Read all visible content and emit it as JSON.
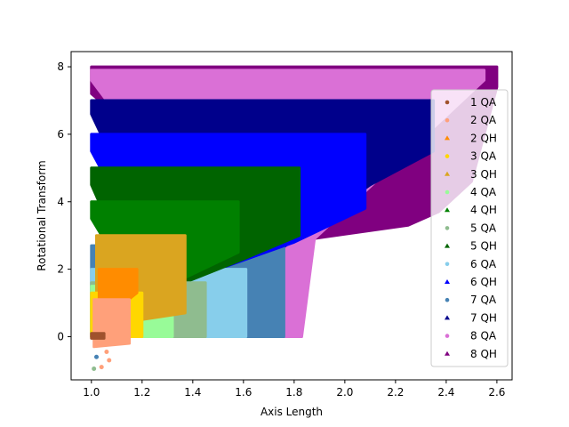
{
  "chart_data": {
    "type": "scatter",
    "xlabel": "Axis Length",
    "ylabel": "Rotational Transform",
    "xlim": [
      0.92,
      2.66
    ],
    "ylim": [
      -1.28,
      8.45
    ],
    "xticks": [
      "1.0",
      "1.2",
      "1.4",
      "1.6",
      "1.8",
      "2.0",
      "2.2",
      "2.4",
      "2.6"
    ],
    "xtick_values": [
      1.0,
      1.2,
      1.4,
      1.6,
      1.8,
      2.0,
      2.2,
      2.4,
      2.6
    ],
    "yticks": [
      "0",
      "2",
      "4",
      "6",
      "8"
    ],
    "ytick_values": [
      0,
      2,
      4,
      6,
      8
    ],
    "grid": false,
    "legend_position": "right",
    "series": [
      {
        "name": "8 QH",
        "color": "#800080",
        "marker": "triangle",
        "region": {
          "x": [
            1.0,
            2.6
          ],
          "y_top": 8.0,
          "y_bottom": [
            [
              1.0,
              7.2
            ],
            [
              1.5,
              4.0
            ],
            [
              1.75,
              2.1
            ],
            [
              1.82,
              1.4
            ],
            [
              1.87,
              2.9
            ],
            [
              2.25,
              3.3
            ],
            [
              2.37,
              3.7
            ],
            [
              2.5,
              4.6
            ],
            [
              2.6,
              7.4
            ]
          ]
        }
      },
      {
        "name": "8 QA",
        "color": "#da70d6",
        "marker": "circle",
        "region": {
          "x": [
            1.0,
            2.55
          ],
          "y_top": 7.9,
          "y_bottom": [
            [
              1.0,
              7.6
            ],
            [
              1.76,
              0.0
            ],
            [
              1.83,
              0.0
            ],
            [
              1.88,
              2.9
            ],
            [
              2.55,
              7.6
            ]
          ]
        }
      },
      {
        "name": "7 QH",
        "color": "#00008b",
        "marker": "triangle",
        "region": {
          "x": [
            1.0,
            2.35
          ],
          "y_top": 7.0,
          "y_bottom": [
            [
              1.0,
              6.6
            ],
            [
              1.32,
              1.5
            ],
            [
              1.6,
              1.8
            ],
            [
              1.7,
              2.3
            ],
            [
              1.8,
              2.9
            ],
            [
              2.1,
              4.5
            ],
            [
              2.35,
              5.5
            ]
          ]
        }
      },
      {
        "name": "7 QA",
        "color": "#4682b4",
        "marker": "circle",
        "region": {
          "x": [
            1.0,
            1.76
          ],
          "y_top": 2.7,
          "y_bottom": [
            [
              1.0,
              0.0
            ],
            [
              1.76,
              0.0
            ]
          ]
        }
      },
      {
        "name": "6 QH",
        "color": "#0000ff",
        "marker": "triangle",
        "region": {
          "x": [
            1.0,
            2.08
          ],
          "y_top": 6.0,
          "y_bottom": [
            [
              1.0,
              5.5
            ],
            [
              1.3,
              1.3
            ],
            [
              1.5,
              2.0
            ],
            [
              1.65,
              2.4
            ],
            [
              1.8,
              2.8
            ],
            [
              2.08,
              3.8
            ]
          ]
        }
      },
      {
        "name": "6 QA",
        "color": "#87ceeb",
        "marker": "circle",
        "region": {
          "x": [
            1.0,
            1.61
          ],
          "y_top": 2.0,
          "y_bottom": [
            [
              1.0,
              0.0
            ],
            [
              1.61,
              0.0
            ]
          ]
        }
      },
      {
        "name": "5 QH",
        "color": "#006400",
        "marker": "triangle",
        "region": {
          "x": [
            1.0,
            1.82
          ],
          "y_top": 5.0,
          "y_bottom": [
            [
              1.0,
              4.5
            ],
            [
              1.2,
              1.1
            ],
            [
              1.4,
              1.7
            ],
            [
              1.6,
              2.3
            ],
            [
              1.82,
              3.0
            ]
          ]
        }
      },
      {
        "name": "5 QA",
        "color": "#8fbc8f",
        "marker": "circle",
        "region": {
          "x": [
            1.0,
            1.45
          ],
          "y_top": 1.6,
          "y_bottom": [
            [
              1.0,
              0.0
            ],
            [
              1.45,
              0.0
            ]
          ]
        }
      },
      {
        "name": "4 QH",
        "color": "#008000",
        "marker": "triangle",
        "region": {
          "x": [
            1.0,
            1.58
          ],
          "y_top": 4.0,
          "y_bottom": [
            [
              1.0,
              3.5
            ],
            [
              1.2,
              1.0
            ],
            [
              1.3,
              1.5
            ],
            [
              1.58,
              2.5
            ]
          ]
        }
      },
      {
        "name": "4 QA",
        "color": "#98fb98",
        "marker": "circle",
        "region": {
          "x": [
            1.0,
            1.32
          ],
          "y_top": 1.5,
          "y_bottom": [
            [
              1.0,
              0.0
            ],
            [
              1.32,
              0.0
            ]
          ]
        }
      },
      {
        "name": "3 QH",
        "color": "#daa520",
        "marker": "triangle",
        "region": {
          "x": [
            1.02,
            1.37
          ],
          "y_top": 3.0,
          "y_bottom": [
            [
              1.02,
              0.3
            ],
            [
              1.37,
              0.7
            ]
          ]
        }
      },
      {
        "name": "3 QA",
        "color": "#ffd700",
        "marker": "circle",
        "region": {
          "x": [
            1.0,
            1.2
          ],
          "y_top": 1.3,
          "y_bottom": [
            [
              1.0,
              0.0
            ],
            [
              1.2,
              0.0
            ]
          ]
        }
      },
      {
        "name": "2 QH",
        "color": "#ff8c00",
        "marker": "triangle",
        "region": {
          "x": [
            1.03,
            1.18
          ],
          "y_top": 2.0,
          "y_bottom": [
            [
              1.03,
              0.4
            ],
            [
              1.18,
              1.3
            ]
          ]
        }
      },
      {
        "name": "2 QA",
        "color": "#ffa07a",
        "marker": "circle",
        "region": {
          "x": [
            1.01,
            1.15
          ],
          "y_top": 1.1,
          "y_bottom": [
            [
              1.01,
              -0.3
            ],
            [
              1.15,
              -0.2
            ]
          ]
        }
      },
      {
        "name": "1 QA",
        "color": "#a0522d",
        "marker": "circle",
        "region": {
          "x": [
            1.0,
            1.05
          ],
          "y_top": 0.1,
          "y_bottom": [
            [
              1.0,
              -0.05
            ],
            [
              1.05,
              -0.05
            ]
          ]
        }
      }
    ],
    "outliers": [
      {
        "x": 1.01,
        "y": -0.95,
        "color": "#8fbc8f"
      },
      {
        "x": 1.02,
        "y": -0.6,
        "color": "#4682b4"
      },
      {
        "x": 1.04,
        "y": -0.9,
        "color": "#ffa07a"
      },
      {
        "x": 1.07,
        "y": -0.7,
        "color": "#ffa07a"
      },
      {
        "x": 1.06,
        "y": -0.45,
        "color": "#ffa07a"
      }
    ]
  }
}
